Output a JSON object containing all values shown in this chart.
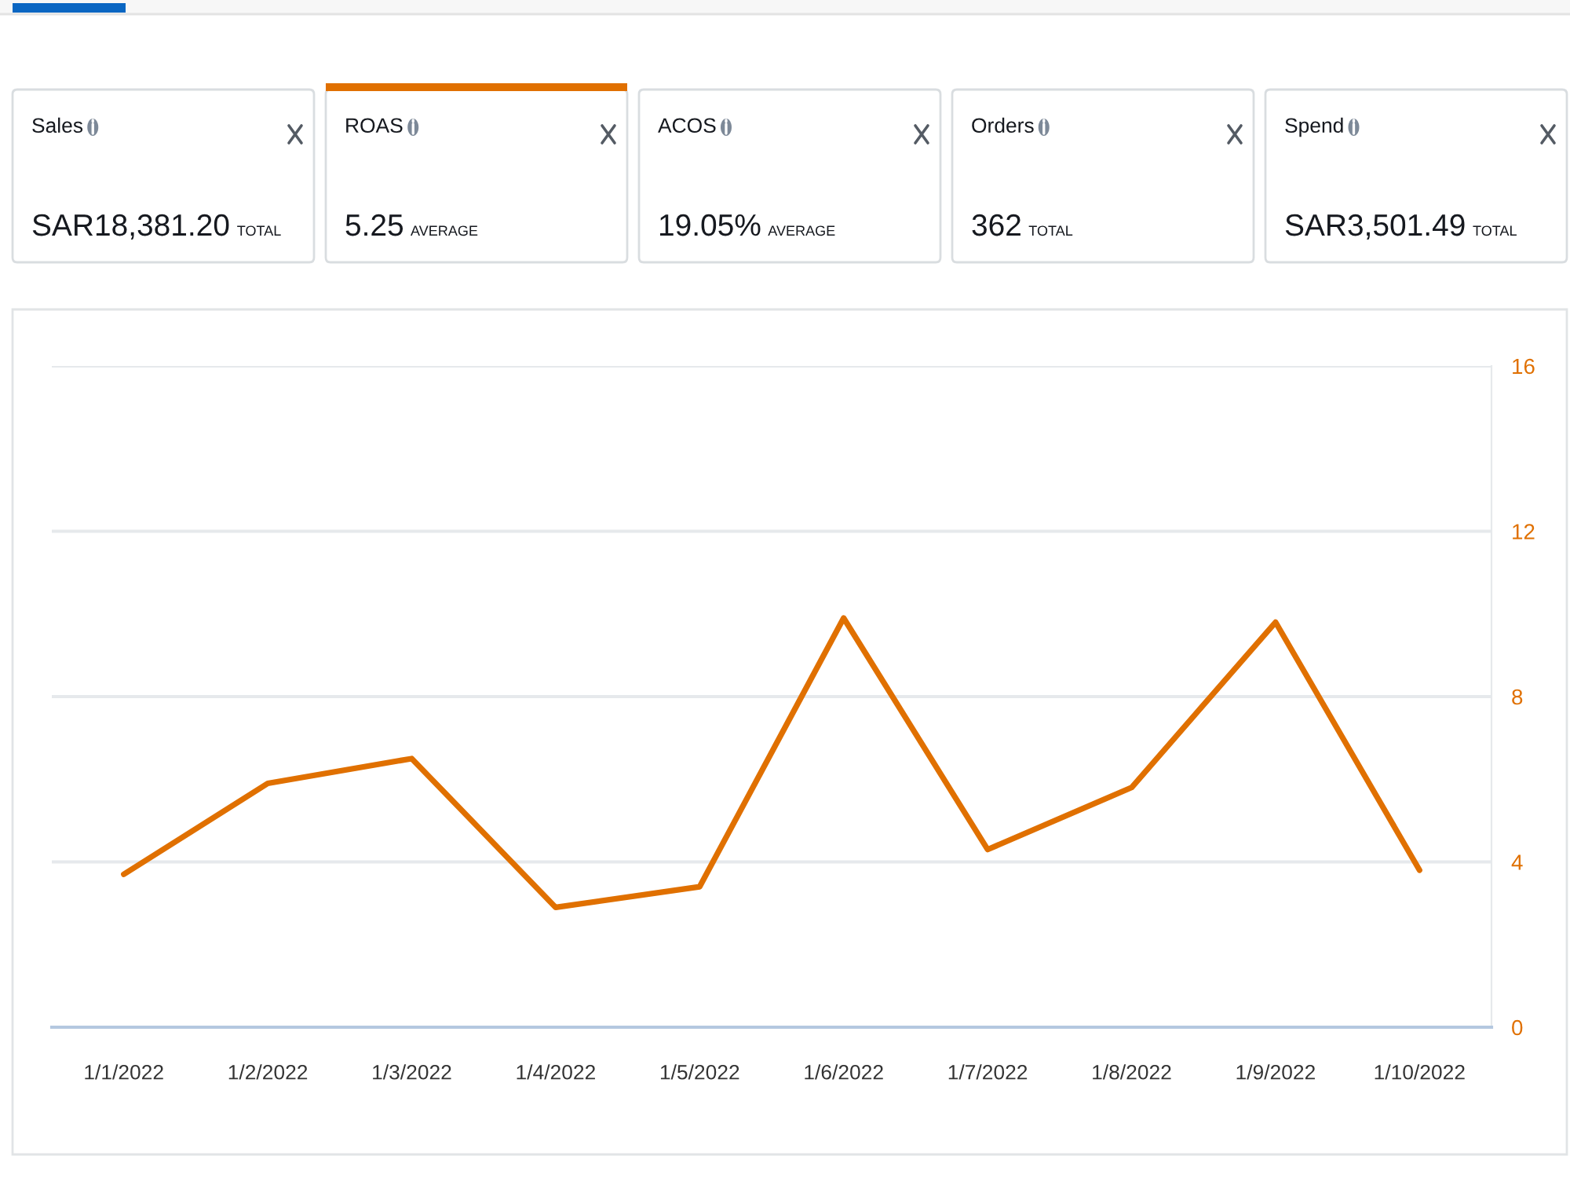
{
  "chart_data": [
    {
      "type": "other",
      "annotations": [
        "Sales",
        "SAR18,381.20",
        "TOTAL",
        "ROAS",
        "5.25",
        "AVERAGE",
        "ACOS",
        "19.05%",
        "AVERAGE",
        "Orders",
        "362",
        "TOTAL",
        "Spend",
        "SAR3,501.49",
        "TOTAL"
      ]
    },
    {
      "type": "line",
      "categories": [
        "1/1/2022",
        "1/2/2022",
        "1/3/2022",
        "1/4/2022",
        "1/5/2022",
        "1/6/2022",
        "1/7/2022",
        "1/8/2022",
        "1/9/2022",
        "1/10/2022"
      ],
      "series": [
        {
          "color": "#e07000",
          "values": [
            3.7,
            5.9,
            6.5,
            2.9,
            3.4,
            9.9,
            4.3,
            5.8,
            9.8,
            3.8
          ]
        }
      ],
      "ylim": [
        0,
        16
      ],
      "yticks": [
        0,
        4,
        8,
        12,
        16
      ],
      "grid": "y"
    }
  ]
}
